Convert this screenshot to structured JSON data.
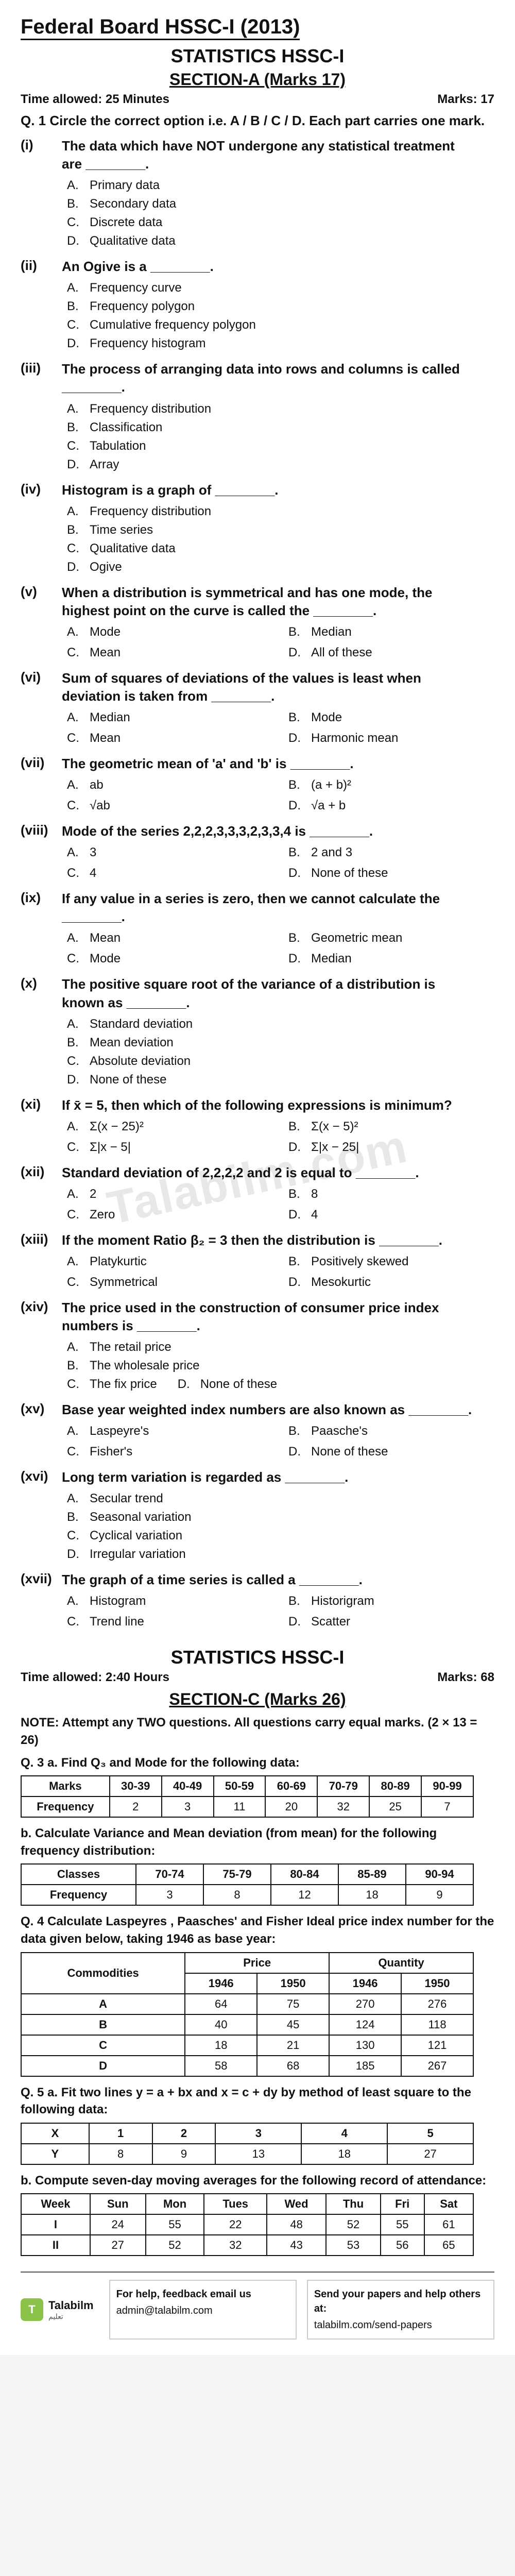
{
  "colors": {
    "text": "#111111",
    "bg": "#ffffff",
    "watermark": "#e8e8e8",
    "border": "#111111"
  },
  "typography": {
    "body_family": "Arial",
    "heading_size_pt": 30,
    "question_size_pt": 20,
    "option_size_pt": 18
  },
  "header": {
    "title": "Federal Board HSSC-I (2013)",
    "subject": "STATISTICS HSSC-I",
    "sectionA_title": "SECTION-A (Marks 17)",
    "time_a": "Time allowed: 25 Minutes",
    "marks_a": "Marks: 17"
  },
  "watermark_text": "Talabilm.com",
  "q1_instruction": "Q. 1  Circle the correct option i.e. A / B / C / D. Each part carries one mark.",
  "mcqs": [
    {
      "num": "(i)",
      "text": "The data which have NOT undergone any statistical treatment are ________.",
      "cols": 1,
      "opts": [
        "Primary data",
        "Secondary data",
        "Discrete data",
        "Qualitative data"
      ]
    },
    {
      "num": "(ii)",
      "text": "An Ogive is a ________.",
      "cols": 1,
      "opts": [
        "Frequency curve",
        "Frequency polygon",
        "Cumulative frequency polygon",
        "Frequency histogram"
      ]
    },
    {
      "num": "(iii)",
      "text": "The process of arranging data into rows and columns is called ________.",
      "cols": 1,
      "opts": [
        "Frequency distribution",
        "Classification",
        "Tabulation",
        "Array"
      ]
    },
    {
      "num": "(iv)",
      "text": "Histogram is a graph of ________.",
      "cols": 1,
      "opts": [
        "Frequency distribution",
        "Time series",
        "Qualitative data",
        "Ogive"
      ]
    },
    {
      "num": "(v)",
      "text": "When a distribution is symmetrical and has one mode, the highest point on the curve is called the ________.",
      "cols": 2,
      "opts": [
        "Mode",
        "Median",
        "Mean",
        "All of these"
      ]
    },
    {
      "num": "(vi)",
      "text": "Sum of squares of deviations of the values is least when deviation is taken from ________.",
      "cols": 2,
      "opts": [
        "Median",
        "Mode",
        "Mean",
        "Harmonic mean"
      ]
    },
    {
      "num": "(vii)",
      "text": "The geometric mean of 'a' and 'b' is ________.",
      "cols": 2,
      "opts": [
        "ab",
        "(a + b)²",
        "√ab",
        "√a + b"
      ]
    },
    {
      "num": "(viii)",
      "text": "Mode of the series 2,2,2,3,3,3,2,3,3,4 is ________.",
      "cols": 2,
      "opts": [
        "3",
        "2 and 3",
        "4",
        "None of these"
      ]
    },
    {
      "num": "(ix)",
      "text": "If any value in a series is zero, then we cannot calculate the ________.",
      "cols": 2,
      "opts": [
        "Mean",
        "Geometric mean",
        "Mode",
        "Median"
      ]
    },
    {
      "num": "(x)",
      "text": "The positive square root of the variance of a distribution is known as ________.",
      "cols": 1,
      "opts": [
        "Standard deviation",
        "Mean deviation",
        "Absolute deviation",
        "None of these"
      ]
    },
    {
      "num": "(xi)",
      "text": "If x̄ = 5, then which of the following expressions is minimum?",
      "cols": 2,
      "opts": [
        "Σ(x − 25)²",
        "Σ(x − 5)²",
        "Σ|x − 5|",
        "Σ|x − 25|"
      ]
    },
    {
      "num": "(xii)",
      "text": "Standard deviation of 2,2,2,2 and 2 is equal to ________.",
      "cols": 2,
      "opts": [
        "2",
        "8",
        "Zero",
        "4"
      ]
    },
    {
      "num": "(xiii)",
      "text": "If the moment Ratio β₂ = 3 then the distribution is ________.",
      "cols": 2,
      "opts": [
        "Platykurtic",
        "Positively skewed",
        "Symmetrical",
        "Mesokurtic"
      ]
    },
    {
      "num": "(xiv)",
      "text": "The price used in the construction of consumer price index numbers is ________.",
      "cols": 2,
      "opts": [
        "The retail price",
        "",
        "The wholesale price",
        "",
        "The fix price",
        "None of these"
      ],
      "special": "xiv"
    },
    {
      "num": "(xv)",
      "text": "Base year weighted index numbers are also known as ________.",
      "cols": 2,
      "opts": [
        "Laspeyre's",
        "Paasche's",
        "Fisher's",
        "None of these"
      ]
    },
    {
      "num": "(xvi)",
      "text": "Long term variation is regarded as ________.",
      "cols": 1,
      "opts": [
        "Secular trend",
        "Seasonal variation",
        "Cyclical variation",
        "Irregular variation"
      ]
    },
    {
      "num": "(xvii)",
      "text": "The graph of a time series is called a ________.",
      "cols": 2,
      "opts": [
        "Histogram",
        "Historigram",
        "Trend line",
        "Scatter"
      ]
    }
  ],
  "sectionC": {
    "subject": "STATISTICS HSSC-I",
    "time": "Time allowed: 2:40 Hours",
    "marks": "Marks: 68",
    "title": "SECTION-C (Marks 26)",
    "note": "NOTE: Attempt any TWO questions. All questions carry equal marks. (2 × 13 = 26)"
  },
  "q3a": {
    "label": "Q. 3 a. Find Q₃ and Mode for the following data:",
    "table": {
      "columns": [
        "Marks",
        "30-39",
        "40-49",
        "50-59",
        "60-69",
        "70-79",
        "80-89",
        "90-99"
      ],
      "rows": [
        [
          "Frequency",
          "2",
          "3",
          "11",
          "20",
          "32",
          "25",
          "7"
        ]
      ]
    }
  },
  "q3b": {
    "label": "b. Calculate Variance and Mean deviation (from mean) for the following frequency distribution:",
    "table": {
      "columns": [
        "Classes",
        "70-74",
        "75-79",
        "80-84",
        "85-89",
        "90-94"
      ],
      "rows": [
        [
          "Frequency",
          "3",
          "8",
          "12",
          "18",
          "9"
        ]
      ]
    }
  },
  "q4": {
    "label": "Q. 4  Calculate Laspeyres , Paasches' and Fisher Ideal price index number for the data given below, taking 1946 as base year:",
    "table": {
      "type": "table",
      "header1": [
        "Commodities",
        "Price",
        "",
        "Quantity",
        ""
      ],
      "header2": [
        "",
        "1946",
        "1950",
        "1946",
        "1950"
      ],
      "rows": [
        [
          "A",
          "64",
          "75",
          "270",
          "276"
        ],
        [
          "B",
          "40",
          "45",
          "124",
          "118"
        ],
        [
          "C",
          "18",
          "21",
          "130",
          "121"
        ],
        [
          "D",
          "58",
          "68",
          "185",
          "267"
        ]
      ]
    }
  },
  "q5a": {
    "label": "Q. 5 a. Fit two lines y = a + bx and x = c + dy by method of least square to the following data:",
    "table": {
      "columns": [
        "X",
        "1",
        "2",
        "3",
        "4",
        "5"
      ],
      "rows": [
        [
          "Y",
          "8",
          "9",
          "13",
          "18",
          "27"
        ]
      ]
    }
  },
  "q5b": {
    "label": "b. Compute seven-day moving averages for the following record of attendance:",
    "table": {
      "columns": [
        "Week",
        "Sun",
        "Mon",
        "Tues",
        "Wed",
        "Thu",
        "Fri",
        "Sat"
      ],
      "rows": [
        [
          "I",
          "24",
          "55",
          "22",
          "48",
          "52",
          "55",
          "61"
        ],
        [
          "II",
          "27",
          "52",
          "32",
          "43",
          "53",
          "56",
          "65"
        ]
      ]
    }
  },
  "footer": {
    "brand": "Talabilm",
    "brand_sub": "تعلیم",
    "help_title": "For help, feedback email us",
    "help_email": "admin@talabilm.com",
    "send_title": "Send your papers and help others at:",
    "send_url": "talabilm.com/send-papers"
  }
}
